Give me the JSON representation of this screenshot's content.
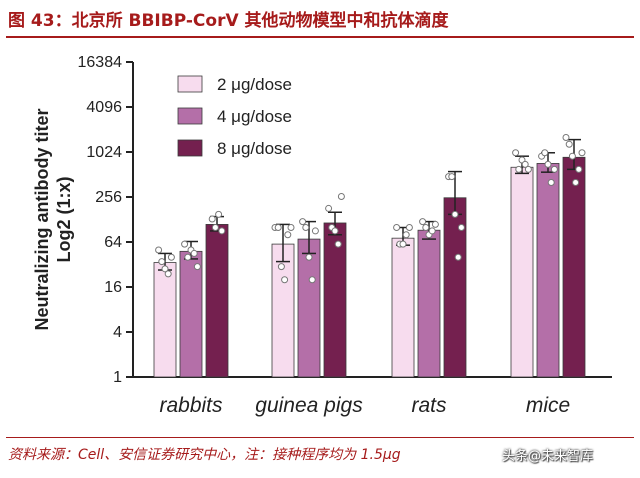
{
  "header": {
    "title": "图 43：北京所 BBIBP-CorV 其他动物模型中和抗体滴度"
  },
  "footer": {
    "source": "资料来源：Cell、安信证券研究中心，注：接种程序均为 1.5μg",
    "watermark": "头条@未来智库"
  },
  "colors": {
    "accent": "#a61b1b",
    "dose_2": "#f7dcee",
    "dose_4": "#b46fa8",
    "dose_8": "#74204f"
  },
  "chart_data": {
    "type": "bar",
    "ylabel_line1": "Neutralizing antibody titer",
    "ylabel_line2": "Log2 (1:x)",
    "yscale": "log2",
    "ylim": [
      1,
      16384
    ],
    "yticks": [
      1,
      4,
      16,
      64,
      256,
      1024,
      4096,
      16384
    ],
    "categories": [
      "rabbits",
      "guinea pigs",
      "rats",
      "mice"
    ],
    "legend_position": "top-left",
    "grid": false,
    "series": [
      {
        "name": "2 μg/dose",
        "color": "#f7dcee",
        "values": [
          34,
          60,
          72,
          640
        ],
        "err_low": [
          27,
          35,
          58,
          530
        ],
        "err_high": [
          45,
          110,
          100,
          900
        ],
        "points": [
          [
            50,
            35,
            28,
            24,
            40
          ],
          [
            100,
            100,
            30,
            20,
            80,
            100
          ],
          [
            100,
            60,
            60,
            80,
            100
          ],
          [
            1000,
            600,
            800,
            700,
            600
          ]
        ]
      },
      {
        "name": "4 μg/dose",
        "color": "#b46fa8",
        "values": [
          48,
          70,
          92,
          720
        ],
        "err_low": [
          38,
          45,
          70,
          550
        ],
        "err_high": [
          65,
          120,
          120,
          1000
        ],
        "points": [
          [
            60,
            40,
            50,
            45,
            30
          ],
          [
            120,
            100,
            40,
            20,
            90
          ],
          [
            120,
            100,
            80,
            90,
            110
          ],
          [
            900,
            1000,
            700,
            400,
            600
          ]
        ]
      },
      {
        "name": "8 μg/dose",
        "color": "#74204f",
        "values": [
          110,
          115,
          250,
          870
        ],
        "err_low": [
          90,
          80,
          150,
          600
        ],
        "err_high": [
          140,
          160,
          560,
          1500
        ],
        "points": [
          [
            130,
            100,
            150,
            90
          ],
          [
            180,
            100,
            90,
            60,
            260
          ],
          [
            480,
            480,
            150,
            40,
            100
          ],
          [
            1600,
            1300,
            900,
            400,
            600,
            1000
          ]
        ]
      }
    ]
  }
}
